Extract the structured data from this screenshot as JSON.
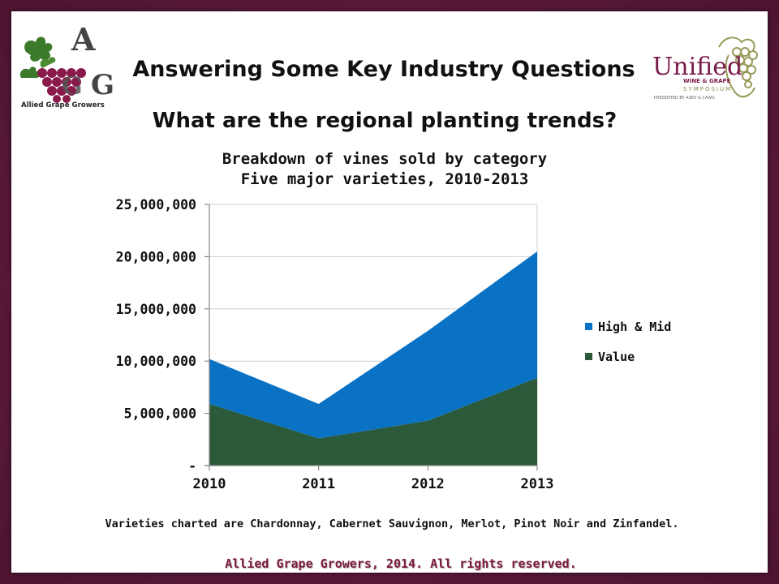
{
  "header": {
    "title": "Answering Some Key Industry Questions",
    "subtitle": "What are the regional planting trends?"
  },
  "logos": {
    "left_letters": "AGG",
    "left_caption": "Allied Grape Growers",
    "right_name": "Unified",
    "right_line2": "WINE & GRAPE",
    "right_line3": "SYMPOSIUM",
    "right_line4": "PRESENTED BY ASEV & CAWG"
  },
  "chart_data": {
    "type": "area",
    "stacked": true,
    "title_lines": [
      "Breakdown of vines sold by category",
      "Five major varieties, 2010-2013"
    ],
    "x": [
      "2010",
      "2011",
      "2012",
      "2013"
    ],
    "series": [
      {
        "name": "Value",
        "values": [
          5900000,
          2600000,
          4300000,
          8400000
        ],
        "color": "#2a5a3a"
      },
      {
        "name": "High & Mid",
        "values": [
          4300000,
          3300000,
          8600000,
          12100000
        ],
        "color": "#0a72c4"
      }
    ],
    "ylim": [
      0,
      25000000
    ],
    "yticks": [
      0,
      5000000,
      10000000,
      15000000,
      20000000,
      25000000
    ],
    "ytick_labels": [
      "-",
      "5,000,000",
      "10,000,000",
      "15,000,000",
      "20,000,000",
      "25,000,000"
    ],
    "legend": [
      "High & Mid",
      "Value"
    ],
    "legend_position": "right",
    "grid": true
  },
  "footer": {
    "note": "Varieties charted are Chardonnay, Cabernet Sauvignon, Merlot, Pinot Noir and Zinfandel.",
    "copyright": "Allied Grape Growers, 2014.  All rights reserved."
  },
  "colors": {
    "frame": "#5a1a35",
    "high_mid": "#0a72c4",
    "value": "#2a5a3a",
    "copyright_text": "#7a1a3a"
  }
}
